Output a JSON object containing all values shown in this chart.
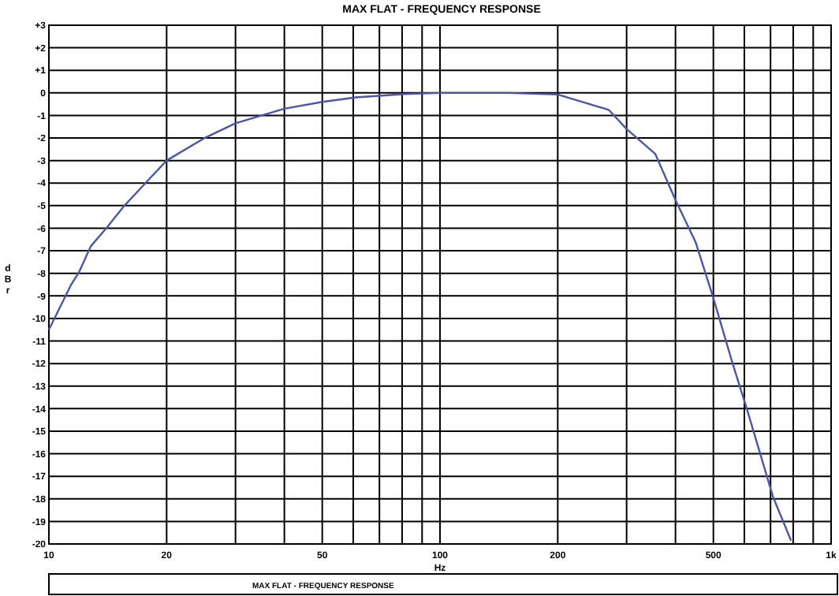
{
  "chart_data": {
    "type": "line",
    "title": "MAX FLAT - FREQUENCY RESPONSE",
    "xlabel": "Hz",
    "ylabel": "dBr",
    "log": "x",
    "grid": true,
    "line_style": "solid",
    "marker": "none",
    "xlim": [
      10,
      1000
    ],
    "ylim": [
      -20,
      3
    ],
    "xticks": [
      10,
      20,
      {
        "value": 30,
        "label": null
      },
      {
        "value": 40,
        "label": null
      },
      50,
      {
        "value": 60,
        "label": null
      },
      {
        "value": 70,
        "label": null
      },
      {
        "value": 80,
        "label": null
      },
      {
        "value": 90,
        "label": null
      },
      100,
      200,
      {
        "value": 300,
        "label": null
      },
      {
        "value": 400,
        "label": null
      },
      500,
      {
        "value": 600,
        "label": null
      },
      {
        "value": 700,
        "label": null
      },
      {
        "value": 800,
        "label": null
      },
      {
        "value": 900,
        "label": null
      },
      {
        "value": 1000,
        "label": "1k"
      }
    ],
    "yticks": [
      {
        "value": 3,
        "label": "+3"
      },
      {
        "value": 2,
        "label": "+2"
      },
      {
        "value": 1,
        "label": "+1"
      },
      0,
      -1,
      -2,
      -3,
      -4,
      -5,
      -6,
      -7,
      -8,
      -9,
      -10,
      -11,
      -12,
      -13,
      -14,
      -15,
      -16,
      -17,
      -18,
      -19,
      -20
    ],
    "series": [
      {
        "color": "#4a56a6",
        "x": [
          10,
          11.4,
          11.9,
          12.8,
          14.1,
          15.6,
          18.1,
          20,
          25,
          30,
          40,
          50,
          61,
          81,
          100,
          150,
          200,
          270,
          300,
          355,
          400,
          450,
          500,
          560,
          610,
          710,
          790
        ],
        "values": [
          -10.5,
          -8.5,
          -8,
          -6.8,
          -5.95,
          -5,
          -3.8,
          -3,
          -2,
          -1.35,
          -0.7,
          -0.4,
          -0.2,
          -0.05,
          0,
          0,
          -0.07,
          -0.75,
          -1.6,
          -2.7,
          -4.75,
          -6.6,
          -9.1,
          -12,
          -14.05,
          -17.9,
          -19.85
        ]
      }
    ],
    "annotations": [
      "MAX FLAT - FREQUENCY RESPONSE"
    ]
  }
}
